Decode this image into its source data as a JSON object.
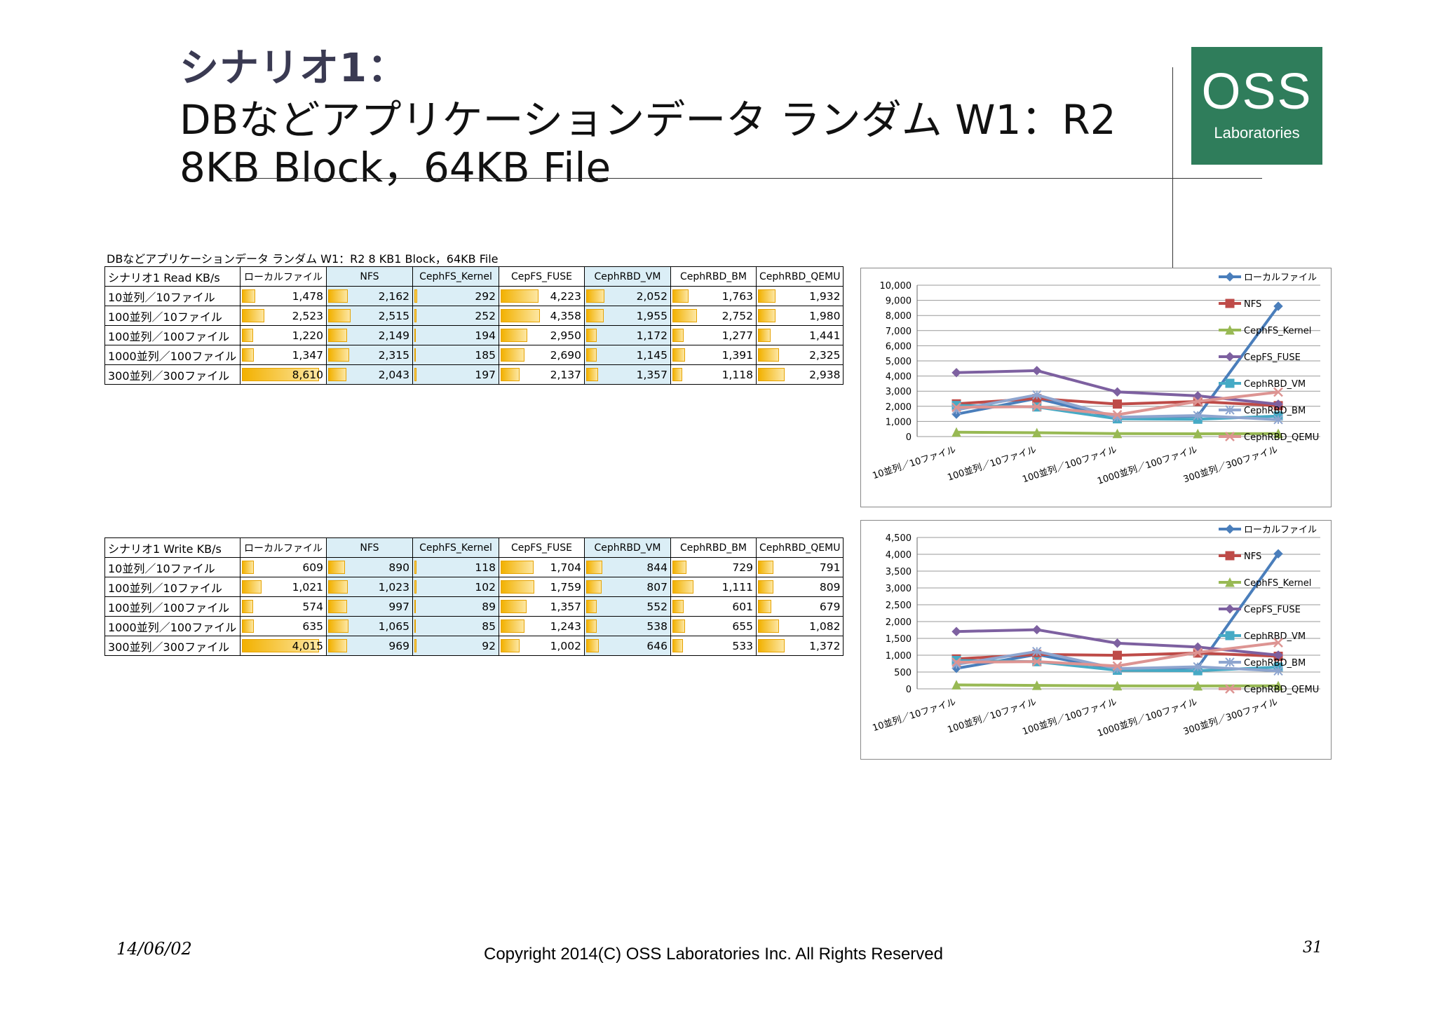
{
  "slide": {
    "title_line1": "シナリオ1：",
    "title_line2": "DBなどアプリケーションデータ ランダム W1：R2",
    "title_line3": "8KB Block，64KB File",
    "logo_main": "OSS",
    "logo_sub": "Laboratories",
    "table_caption": "DBなどアプリケーションデータ ランダム W1：R2 8 KB1 Block，64KB File",
    "footer_date": "14/06/02",
    "footer_copyright": "Copyright 2014(C) OSS Laboratories Inc. All Rights Reserved",
    "page_number": "31"
  },
  "colors": {
    "logo_bg": "#2f7d5b",
    "bar_fill": "#f2b100",
    "blue_cell": "#dbeef6"
  },
  "read_table": {
    "header": [
      "シナリオ1 Read KB/s",
      "ローカルファイル",
      "NFS",
      "CephFS_Kernel",
      "CepFS_FUSE",
      "CephRBD_VM",
      "CephRBD_BM",
      "CephRBD_QEMU"
    ],
    "rows": [
      {
        "label": "10並列／10ファイル",
        "values": [
          "1,478",
          "2,162",
          "292",
          "4,223",
          "2,052",
          "1,763",
          "1,932"
        ]
      },
      {
        "label": "100並列／10ファイル",
        "values": [
          "2,523",
          "2,515",
          "252",
          "4,358",
          "1,955",
          "2,752",
          "1,980"
        ]
      },
      {
        "label": "100並列／100ファイル",
        "values": [
          "1,220",
          "2,149",
          "194",
          "2,950",
          "1,172",
          "1,277",
          "1,441"
        ]
      },
      {
        "label": "1000並列／100ファイル",
        "values": [
          "1,347",
          "2,315",
          "185",
          "2,690",
          "1,145",
          "1,391",
          "2,325"
        ]
      },
      {
        "label": "300並列／300ファイル",
        "values": [
          "8,610",
          "2,043",
          "197",
          "2,137",
          "1,357",
          "1,118",
          "2,938"
        ]
      }
    ]
  },
  "write_table": {
    "header": [
      "シナリオ1 Write KB/s",
      "ローカルファイル",
      "NFS",
      "CephFS_Kernel",
      "CepFS_FUSE",
      "CephRBD_VM",
      "CephRBD_BM",
      "CephRBD_QEMU"
    ],
    "rows": [
      {
        "label": "10並列／10ファイル",
        "values": [
          "609",
          "890",
          "118",
          "1,704",
          "844",
          "729",
          "791"
        ]
      },
      {
        "label": "100並列／10ファイル",
        "values": [
          "1,021",
          "1,023",
          "102",
          "1,759",
          "807",
          "1,111",
          "809"
        ]
      },
      {
        "label": "100並列／100ファイル",
        "values": [
          "574",
          "997",
          "89",
          "1,357",
          "552",
          "601",
          "679"
        ]
      },
      {
        "label": "1000並列／100ファイル",
        "values": [
          "635",
          "1,065",
          "85",
          "1,243",
          "538",
          "655",
          "1,082"
        ]
      },
      {
        "label": "300並列／300ファイル",
        "values": [
          "4,015",
          "969",
          "92",
          "1,002",
          "646",
          "533",
          "1,372"
        ]
      }
    ]
  },
  "chart_data": [
    {
      "type": "line",
      "title": "",
      "categories": [
        "10並列／10ファイル",
        "100並列／10ファイル",
        "100並列／100ファイル",
        "1000並列／100ファイル",
        "300並列／300ファイル"
      ],
      "ylim": [
        0,
        10000
      ],
      "yticks": [
        "0",
        "1,000",
        "2,000",
        "3,000",
        "4,000",
        "5,000",
        "6,000",
        "7,000",
        "8,000",
        "9,000",
        "10,000"
      ],
      "ytick_values": [
        0,
        1000,
        2000,
        3000,
        4000,
        5000,
        6000,
        7000,
        8000,
        9000,
        10000
      ],
      "grid": true,
      "legend_position": "right",
      "series": [
        {
          "name": "ローカルファイル",
          "color": "#4a7ebb",
          "marker": "diamond",
          "values": [
            1478,
            2523,
            1220,
            1347,
            8610
          ]
        },
        {
          "name": "NFS",
          "color": "#be4b48",
          "marker": "square",
          "values": [
            2162,
            2515,
            2149,
            2315,
            2043
          ]
        },
        {
          "name": "CephFS_Kernel",
          "color": "#98b954",
          "marker": "triangle",
          "values": [
            292,
            252,
            194,
            185,
            197
          ]
        },
        {
          "name": "CepFS_FUSE",
          "color": "#7d60a0",
          "marker": "diamond",
          "values": [
            4223,
            4358,
            2950,
            2690,
            2137
          ]
        },
        {
          "name": "CephRBD_VM",
          "color": "#46aac5",
          "marker": "square",
          "values": [
            2052,
            1955,
            1172,
            1145,
            1357
          ]
        },
        {
          "name": "CephRBD_BM",
          "color": "#8ea5cf",
          "marker": "star",
          "values": [
            1763,
            2752,
            1277,
            1391,
            1118
          ]
        },
        {
          "name": "CephRBD_QEMU",
          "color": "#dd9492",
          "marker": "x",
          "values": [
            1932,
            1980,
            1441,
            2325,
            2938
          ]
        }
      ]
    },
    {
      "type": "line",
      "title": "",
      "categories": [
        "10並列／10ファイル",
        "100並列／10ファイル",
        "100並列／100ファイル",
        "1000並列／100ファイル",
        "300並列／300ファイル"
      ],
      "ylim": [
        0,
        4500
      ],
      "yticks": [
        "0",
        "500",
        "1,000",
        "1,500",
        "2,000",
        "2,500",
        "3,000",
        "3,500",
        "4,000",
        "4,500"
      ],
      "ytick_values": [
        0,
        500,
        1000,
        1500,
        2000,
        2500,
        3000,
        3500,
        4000,
        4500
      ],
      "grid": true,
      "legend_position": "right",
      "series": [
        {
          "name": "ローカルファイル",
          "color": "#4a7ebb",
          "marker": "diamond",
          "values": [
            609,
            1021,
            574,
            635,
            4015
          ]
        },
        {
          "name": "NFS",
          "color": "#be4b48",
          "marker": "square",
          "values": [
            890,
            1023,
            997,
            1065,
            969
          ]
        },
        {
          "name": "CephFS_Kernel",
          "color": "#98b954",
          "marker": "triangle",
          "values": [
            118,
            102,
            89,
            85,
            92
          ]
        },
        {
          "name": "CepFS_FUSE",
          "color": "#7d60a0",
          "marker": "diamond",
          "values": [
            1704,
            1759,
            1357,
            1243,
            1002
          ]
        },
        {
          "name": "CephRBD_VM",
          "color": "#46aac5",
          "marker": "square",
          "values": [
            844,
            807,
            552,
            538,
            646
          ]
        },
        {
          "name": "CephRBD_BM",
          "color": "#8ea5cf",
          "marker": "star",
          "values": [
            729,
            1111,
            601,
            655,
            533
          ]
        },
        {
          "name": "CephRBD_QEMU",
          "color": "#dd9492",
          "marker": "x",
          "values": [
            791,
            809,
            679,
            1082,
            1372
          ]
        }
      ]
    }
  ]
}
